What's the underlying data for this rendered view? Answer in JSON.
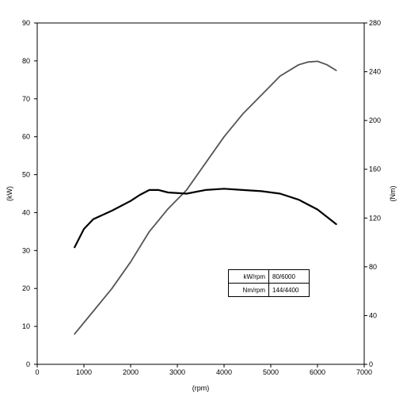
{
  "chart_data": {
    "type": "line",
    "x_label": "(rpm)",
    "y_left_label": "(kW)",
    "y_right_label": "(Nm)",
    "x_range": [
      0,
      7000
    ],
    "y_left_range": [
      0,
      90
    ],
    "y_right_range": [
      0,
      280
    ],
    "x_ticks": [
      "0",
      "1000",
      "2000",
      "3000",
      "4000",
      "5000",
      "6000",
      "7000"
    ],
    "y_left_ticks": [
      "0",
      "10",
      "20",
      "30",
      "40",
      "50",
      "60",
      "70",
      "80",
      "90"
    ],
    "y_right_ticks": [
      "0",
      "40",
      "80",
      "120",
      "160",
      "200",
      "240",
      "280"
    ],
    "series": [
      {
        "axis": "left",
        "color": "#555555",
        "x": [
          800,
          1200,
          1600,
          2000,
          2400,
          2800,
          3200,
          3600,
          4000,
          4400,
          4800,
          5200,
          5600,
          5800,
          6000,
          6200,
          6400
        ],
        "y": [
          8,
          14,
          20,
          27,
          35,
          41,
          46,
          53,
          60,
          66,
          71,
          76,
          79,
          79.7,
          79.9,
          79,
          77.5
        ]
      },
      {
        "axis": "right",
        "color": "#000000",
        "x": [
          800,
          1000,
          1200,
          1600,
          2000,
          2200,
          2400,
          2600,
          2800,
          3200,
          3600,
          4000,
          4400,
          4800,
          5200,
          5600,
          6000,
          6200,
          6400
        ],
        "y": [
          96,
          111,
          119,
          126,
          134,
          139,
          143,
          143,
          141,
          140,
          143,
          144,
          143,
          142,
          140,
          135,
          127,
          121,
          115
        ]
      }
    ],
    "spec_table": [
      {
        "label": "kW/rpm",
        "value": "80/6000"
      },
      {
        "label": "Nm/rpm",
        "value": "144/4400"
      }
    ]
  }
}
